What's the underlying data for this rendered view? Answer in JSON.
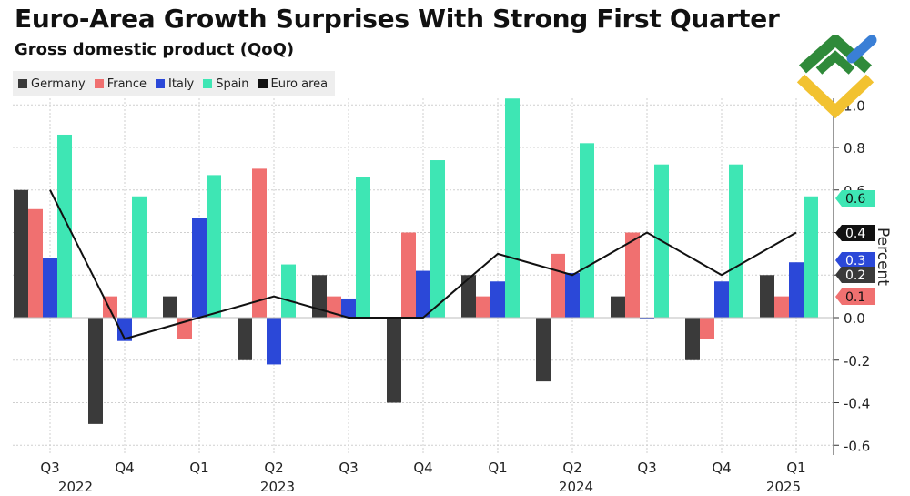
{
  "title": "Euro-Area Growth Surprises With Strong First Quarter",
  "subtitle": "Gross domestic product (QoQ)",
  "chart_data": {
    "type": "bar",
    "title": "Euro-Area Growth Surprises With Strong First Quarter",
    "subtitle": "Gross domestic product (QoQ)",
    "ylabel": "Percent",
    "xlabel": "",
    "ylim": [
      -0.6,
      1.05
    ],
    "yticks": [
      -0.6,
      -0.4,
      -0.2,
      0.0,
      0.2,
      0.4,
      0.6,
      0.8,
      1.0
    ],
    "ytick_labels": [
      "-0.6",
      "-0.4",
      "-0.2",
      "0.0",
      "0.2",
      "0.4",
      "0.6",
      "0.8",
      "1.0"
    ],
    "categories": [
      "Q3",
      "Q4",
      "Q1",
      "Q2",
      "Q3",
      "Q4",
      "Q1",
      "Q2",
      "Q3",
      "Q4",
      "Q1"
    ],
    "years": [
      {
        "label": "2022",
        "index": 0
      },
      {
        "label": "2023",
        "index": 3
      },
      {
        "label": "2024",
        "index": 7
      },
      {
        "label": "2025",
        "index": 10
      }
    ],
    "legend_position": "top-left",
    "grid": true,
    "series": [
      {
        "name": "Germany",
        "color": "#3a3a3a",
        "kind": "bar",
        "values": [
          0.6,
          -0.5,
          0.1,
          -0.2,
          0.2,
          -0.4,
          0.2,
          -0.3,
          0.1,
          -0.2,
          0.2
        ]
      },
      {
        "name": "France",
        "color": "#f07070",
        "kind": "bar",
        "values": [
          0.51,
          0.1,
          -0.1,
          0.7,
          0.1,
          0.4,
          0.1,
          0.3,
          0.4,
          -0.1,
          0.1
        ]
      },
      {
        "name": "Italy",
        "color": "#2b48d8",
        "kind": "bar",
        "values": [
          0.28,
          -0.11,
          0.47,
          -0.22,
          0.09,
          0.22,
          0.17,
          0.21,
          0.0,
          0.17,
          0.26
        ]
      },
      {
        "name": "Spain",
        "color": "#3ee6b4",
        "kind": "bar",
        "values": [
          0.86,
          0.57,
          0.67,
          0.25,
          0.66,
          0.74,
          1.03,
          0.82,
          0.72,
          0.72,
          0.57
        ]
      },
      {
        "name": "Euro area",
        "color": "#111111",
        "kind": "line",
        "values": [
          0.6,
          -0.1,
          0.0,
          0.1,
          0.0,
          0.0,
          0.3,
          0.2,
          0.4,
          0.2,
          0.4
        ]
      }
    ],
    "end_labels": [
      {
        "text": "0.6",
        "value": 0.6,
        "bg": "#3ee6b4",
        "fg": "#111111",
        "series": "Spain"
      },
      {
        "text": "0.4",
        "value": 0.4,
        "bg": "#111111",
        "fg": "#ffffff",
        "series": "Euro area"
      },
      {
        "text": "0.3",
        "value": 0.3,
        "bg": "#2b48d8",
        "fg": "#ffffff",
        "series": "Italy"
      },
      {
        "text": "0.2",
        "value": 0.2,
        "bg": "#3a3a3a",
        "fg": "#ffffff",
        "series": "Germany"
      },
      {
        "text": "0.1",
        "value": 0.1,
        "bg": "#f07070",
        "fg": "#111111",
        "series": "France"
      }
    ]
  }
}
